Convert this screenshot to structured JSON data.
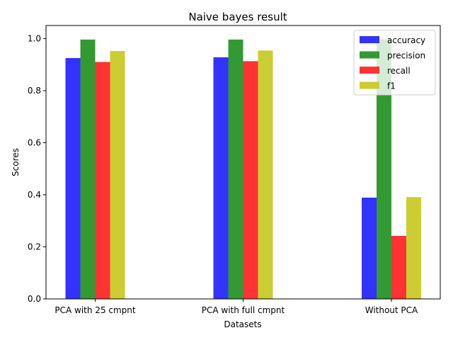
{
  "chart_data": {
    "type": "bar",
    "title": "Naive bayes result",
    "xlabel": "Datasets",
    "ylabel": "Scores",
    "categories": [
      "PCA with 25 cmpnt",
      "PCA with full cmpnt",
      "Without PCA"
    ],
    "series": [
      {
        "name": "accuracy",
        "color": "#3333ff",
        "values": [
          0.925,
          0.928,
          0.389
        ]
      },
      {
        "name": "precision",
        "color": "#339933",
        "values": [
          0.996,
          0.996,
          0.997
        ]
      },
      {
        "name": "recall",
        "color": "#ff3333",
        "values": [
          0.91,
          0.913,
          0.242
        ]
      },
      {
        "name": "f1",
        "color": "#cccc33",
        "values": [
          0.952,
          0.954,
          0.391
        ]
      }
    ],
    "ylim": [
      0,
      1.05
    ],
    "yticks": [
      0.0,
      0.2,
      0.4,
      0.6,
      0.8,
      1.0
    ],
    "legend_position": "top-right",
    "grid": false
  }
}
